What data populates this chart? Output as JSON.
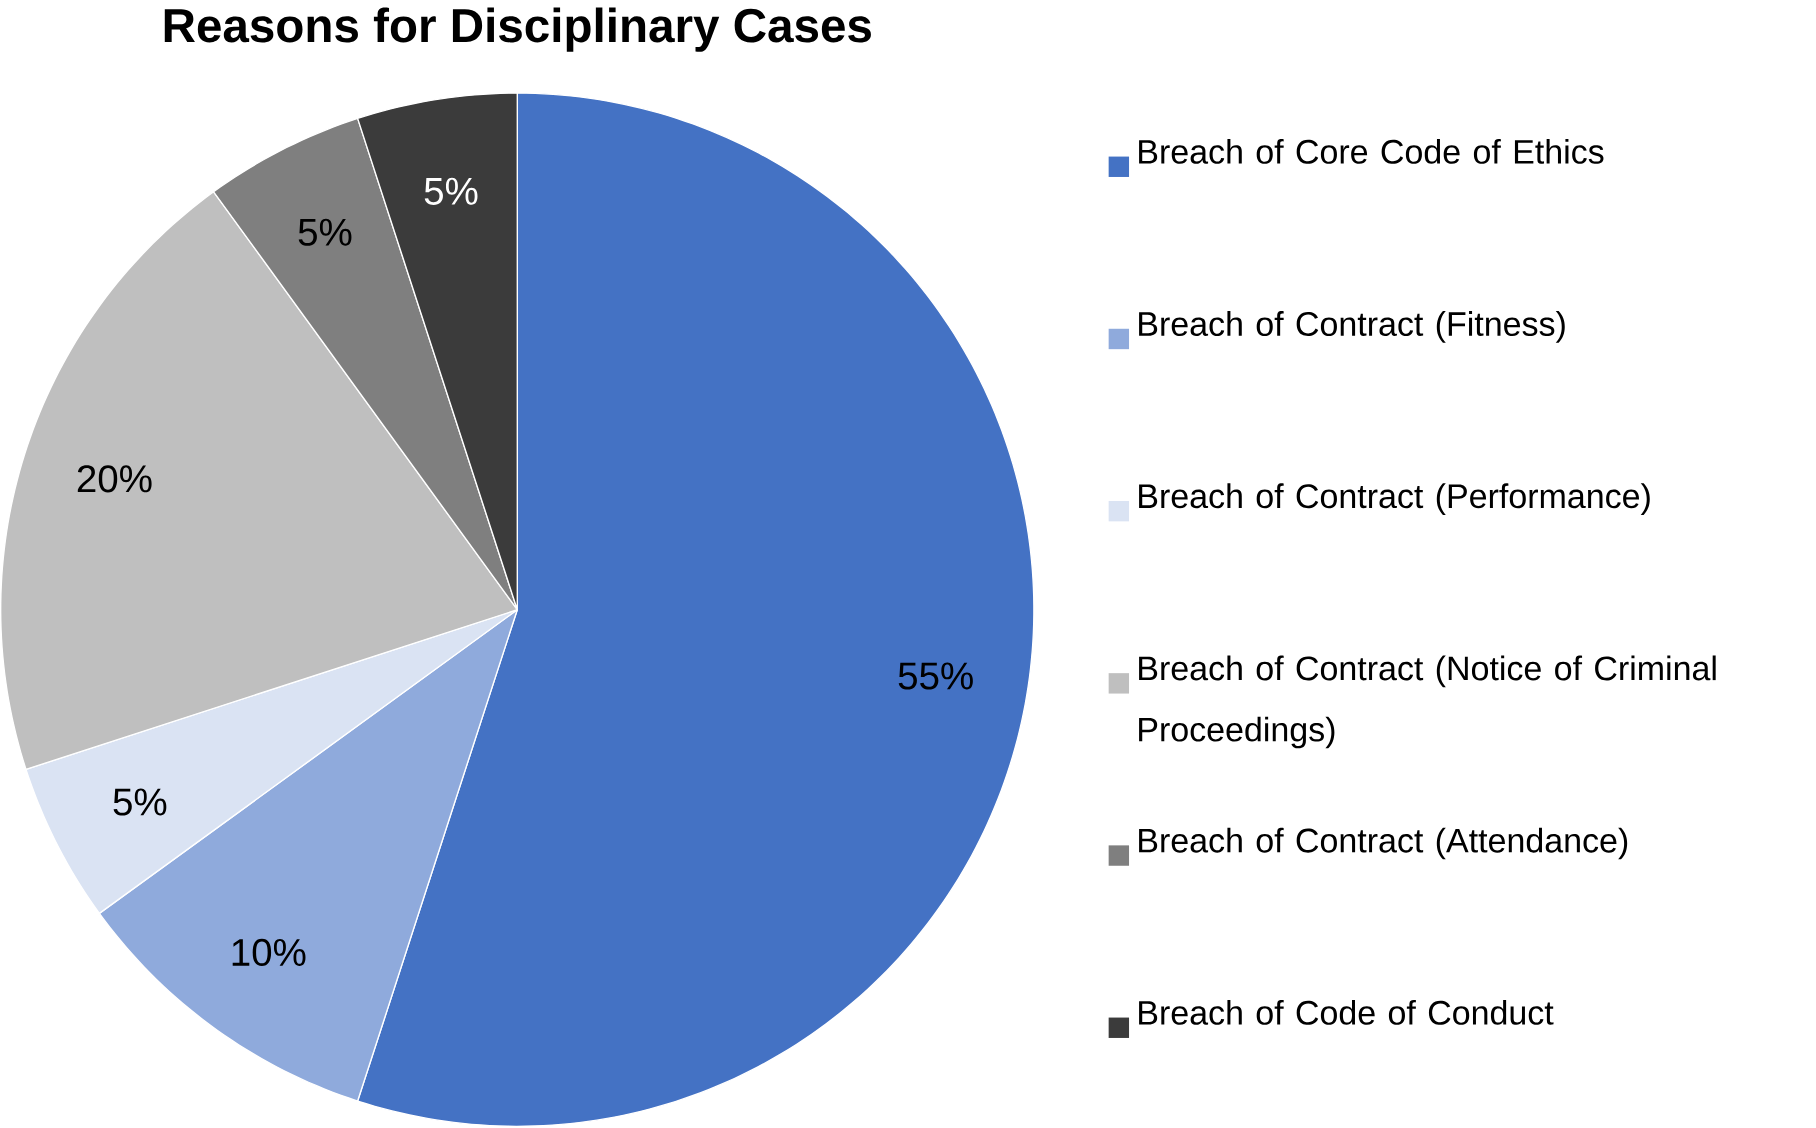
{
  "chart_data": {
    "type": "pie",
    "title": "Reasons for Disciplinary Cases",
    "categories": [
      "Breach of Core Code of Ethics",
      "Breach of Contract (Fitness)",
      "Breach of Contract (Performance)",
      "Breach of Contract (Notice of Criminal Proceedings)",
      "Breach of Contract (Attendance)",
      "Breach of Code of Conduct"
    ],
    "values": [
      55,
      10,
      5,
      20,
      5,
      5
    ],
    "colors": [
      "#4472c4",
      "#8faadc",
      "#dae3f3",
      "#bfbfbf",
      "#7f7f7f",
      "#3b3b3b"
    ],
    "value_labels": [
      "55%",
      "10%",
      "5%",
      "20%",
      "5%",
      "5%"
    ],
    "legend": "right"
  }
}
